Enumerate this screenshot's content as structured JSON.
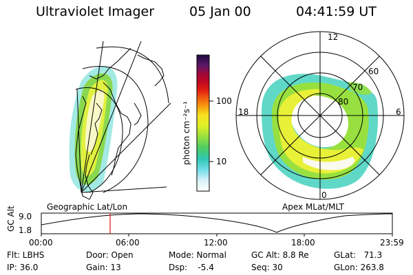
{
  "header": {
    "title": "Ultraviolet Imager",
    "date": "05 Jan 00",
    "time": "04:41:59 UT"
  },
  "colorbar": {
    "unit_label": "photon cm⁻²s⁻¹",
    "tick_100": "100",
    "tick_10": "10",
    "colors": [
      "#ffffff",
      "#e0f4f8",
      "#a8e8f0",
      "#58d8d8",
      "#30c8a0",
      "#58d060",
      "#98e040",
      "#d8f028",
      "#f8f020",
      "#f8c018",
      "#f89010",
      "#f05810",
      "#e02010",
      "#c80818",
      "#a00830",
      "#701858",
      "#401070",
      "#200a40"
    ]
  },
  "geo_map": {
    "label": "Geographic Lat/Lon"
  },
  "polar": {
    "label": "Apex MLat/MLT",
    "mlt_12": "12",
    "mlt_18": "18",
    "mlt_6": "6",
    "mlt_0": "0",
    "lat_60": "60",
    "lat_70": "70",
    "lat_80": "80"
  },
  "altitude_plot": {
    "axis_label": "GC Alt",
    "y_top": "9.0",
    "y_bottom": "1.8",
    "x_ticks": [
      "00:00",
      "06:00",
      "12:00",
      "18:00",
      "23:59"
    ],
    "marker_color": "#e01010"
  },
  "info": {
    "flt": "Flt: LBHS",
    "ip": "IP: 36.0",
    "door": "Door: Open",
    "gain": "Gain: 13",
    "mode": "Mode: Normal",
    "dsp": "Dsp:    -5.4",
    "gcalt": "GC Alt: 8.8 Re",
    "seq": "Seq: 30",
    "glat": "GLat:   71.3",
    "glon": "GLon: 263.8"
  }
}
